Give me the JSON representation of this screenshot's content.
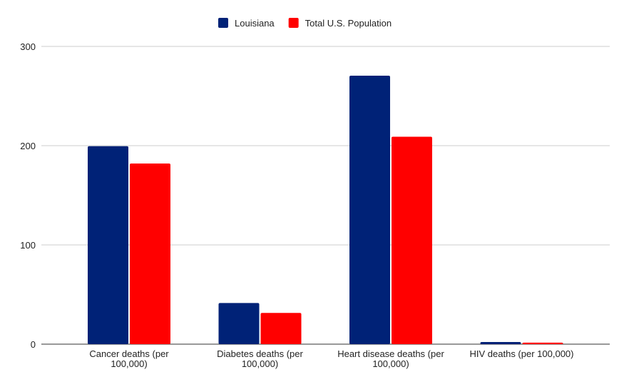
{
  "chart_data": {
    "type": "bar",
    "title": "",
    "xlabel": "",
    "ylabel": "",
    "categories": [
      [
        "Cancer deaths (per",
        "100,000)"
      ],
      [
        "Diabetes deaths (per",
        "100,000)"
      ],
      [
        "Heart disease deaths (per",
        "100,000)"
      ],
      [
        "HIV deaths (per 100,000)"
      ]
    ],
    "series": [
      {
        "name": "Louisiana",
        "color": "#002277",
        "values": [
          199.5,
          41.5,
          270.5,
          2.2
        ]
      },
      {
        "name": "Total U.S. Population",
        "color": "#ff0000",
        "values": [
          182,
          31.5,
          209,
          1.5
        ]
      }
    ],
    "ylim": [
      0,
      300
    ],
    "yticks": [
      "0",
      "100",
      "200",
      "300"
    ],
    "grid": true,
    "legend": "top-center"
  }
}
